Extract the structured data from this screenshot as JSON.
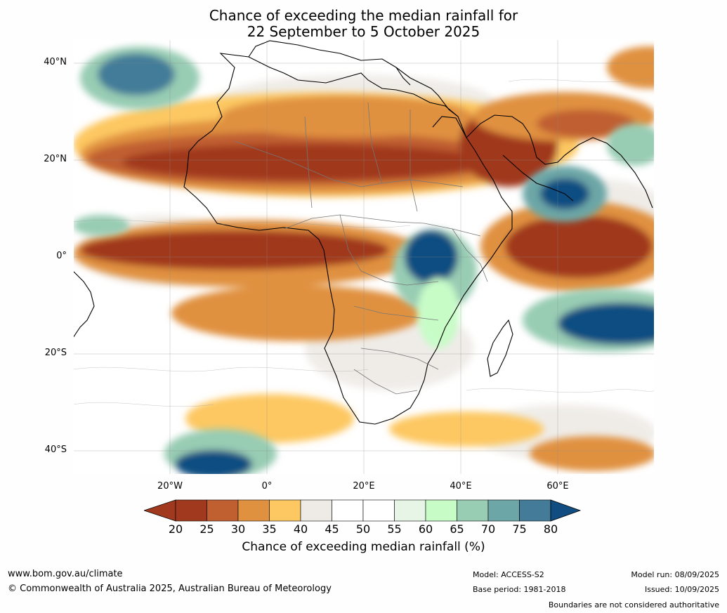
{
  "title": {
    "line1": "Chance of exceeding the median rainfall for",
    "line2": "22 September to 5 October 2025"
  },
  "lat_labels": [
    "40°N",
    "20°N",
    "0°",
    "20°S",
    "40°S"
  ],
  "lon_labels": [
    "20°W",
    "0°",
    "20°E",
    "40°E",
    "60°E"
  ],
  "colorbar": {
    "ticks": [
      "20",
      "25",
      "30",
      "35",
      "40",
      "45",
      "50",
      "55",
      "60",
      "65",
      "70",
      "75",
      "80"
    ],
    "colors": [
      "#a0391d",
      "#c05f30",
      "#e0913f",
      "#fdc862",
      "#eeebe6",
      "#ffffff",
      "#ffffff",
      "#e6f5e6",
      "#c7fcc7",
      "#98ccb3",
      "#6ca6a6",
      "#437b99",
      "#114d81"
    ],
    "label": "Chance of exceeding median rainfall (%)"
  },
  "footer": {
    "website": "www.bom.gov.au/climate",
    "copyright": "© Commonwealth of Australia 2025, Australian Bureau of Meteorology",
    "model": "Model: ACCESS-S2",
    "base_period": "Base period: 1981-2018",
    "model_run": "Model run: 08/09/2025",
    "issued": "Issued: 10/09/2025",
    "disclaimer": "Boundaries are not considered authoritative"
  },
  "map": {
    "lon_range": [
      -40,
      80
    ],
    "lat_range": [
      -45,
      45
    ],
    "gridlines": true
  }
}
